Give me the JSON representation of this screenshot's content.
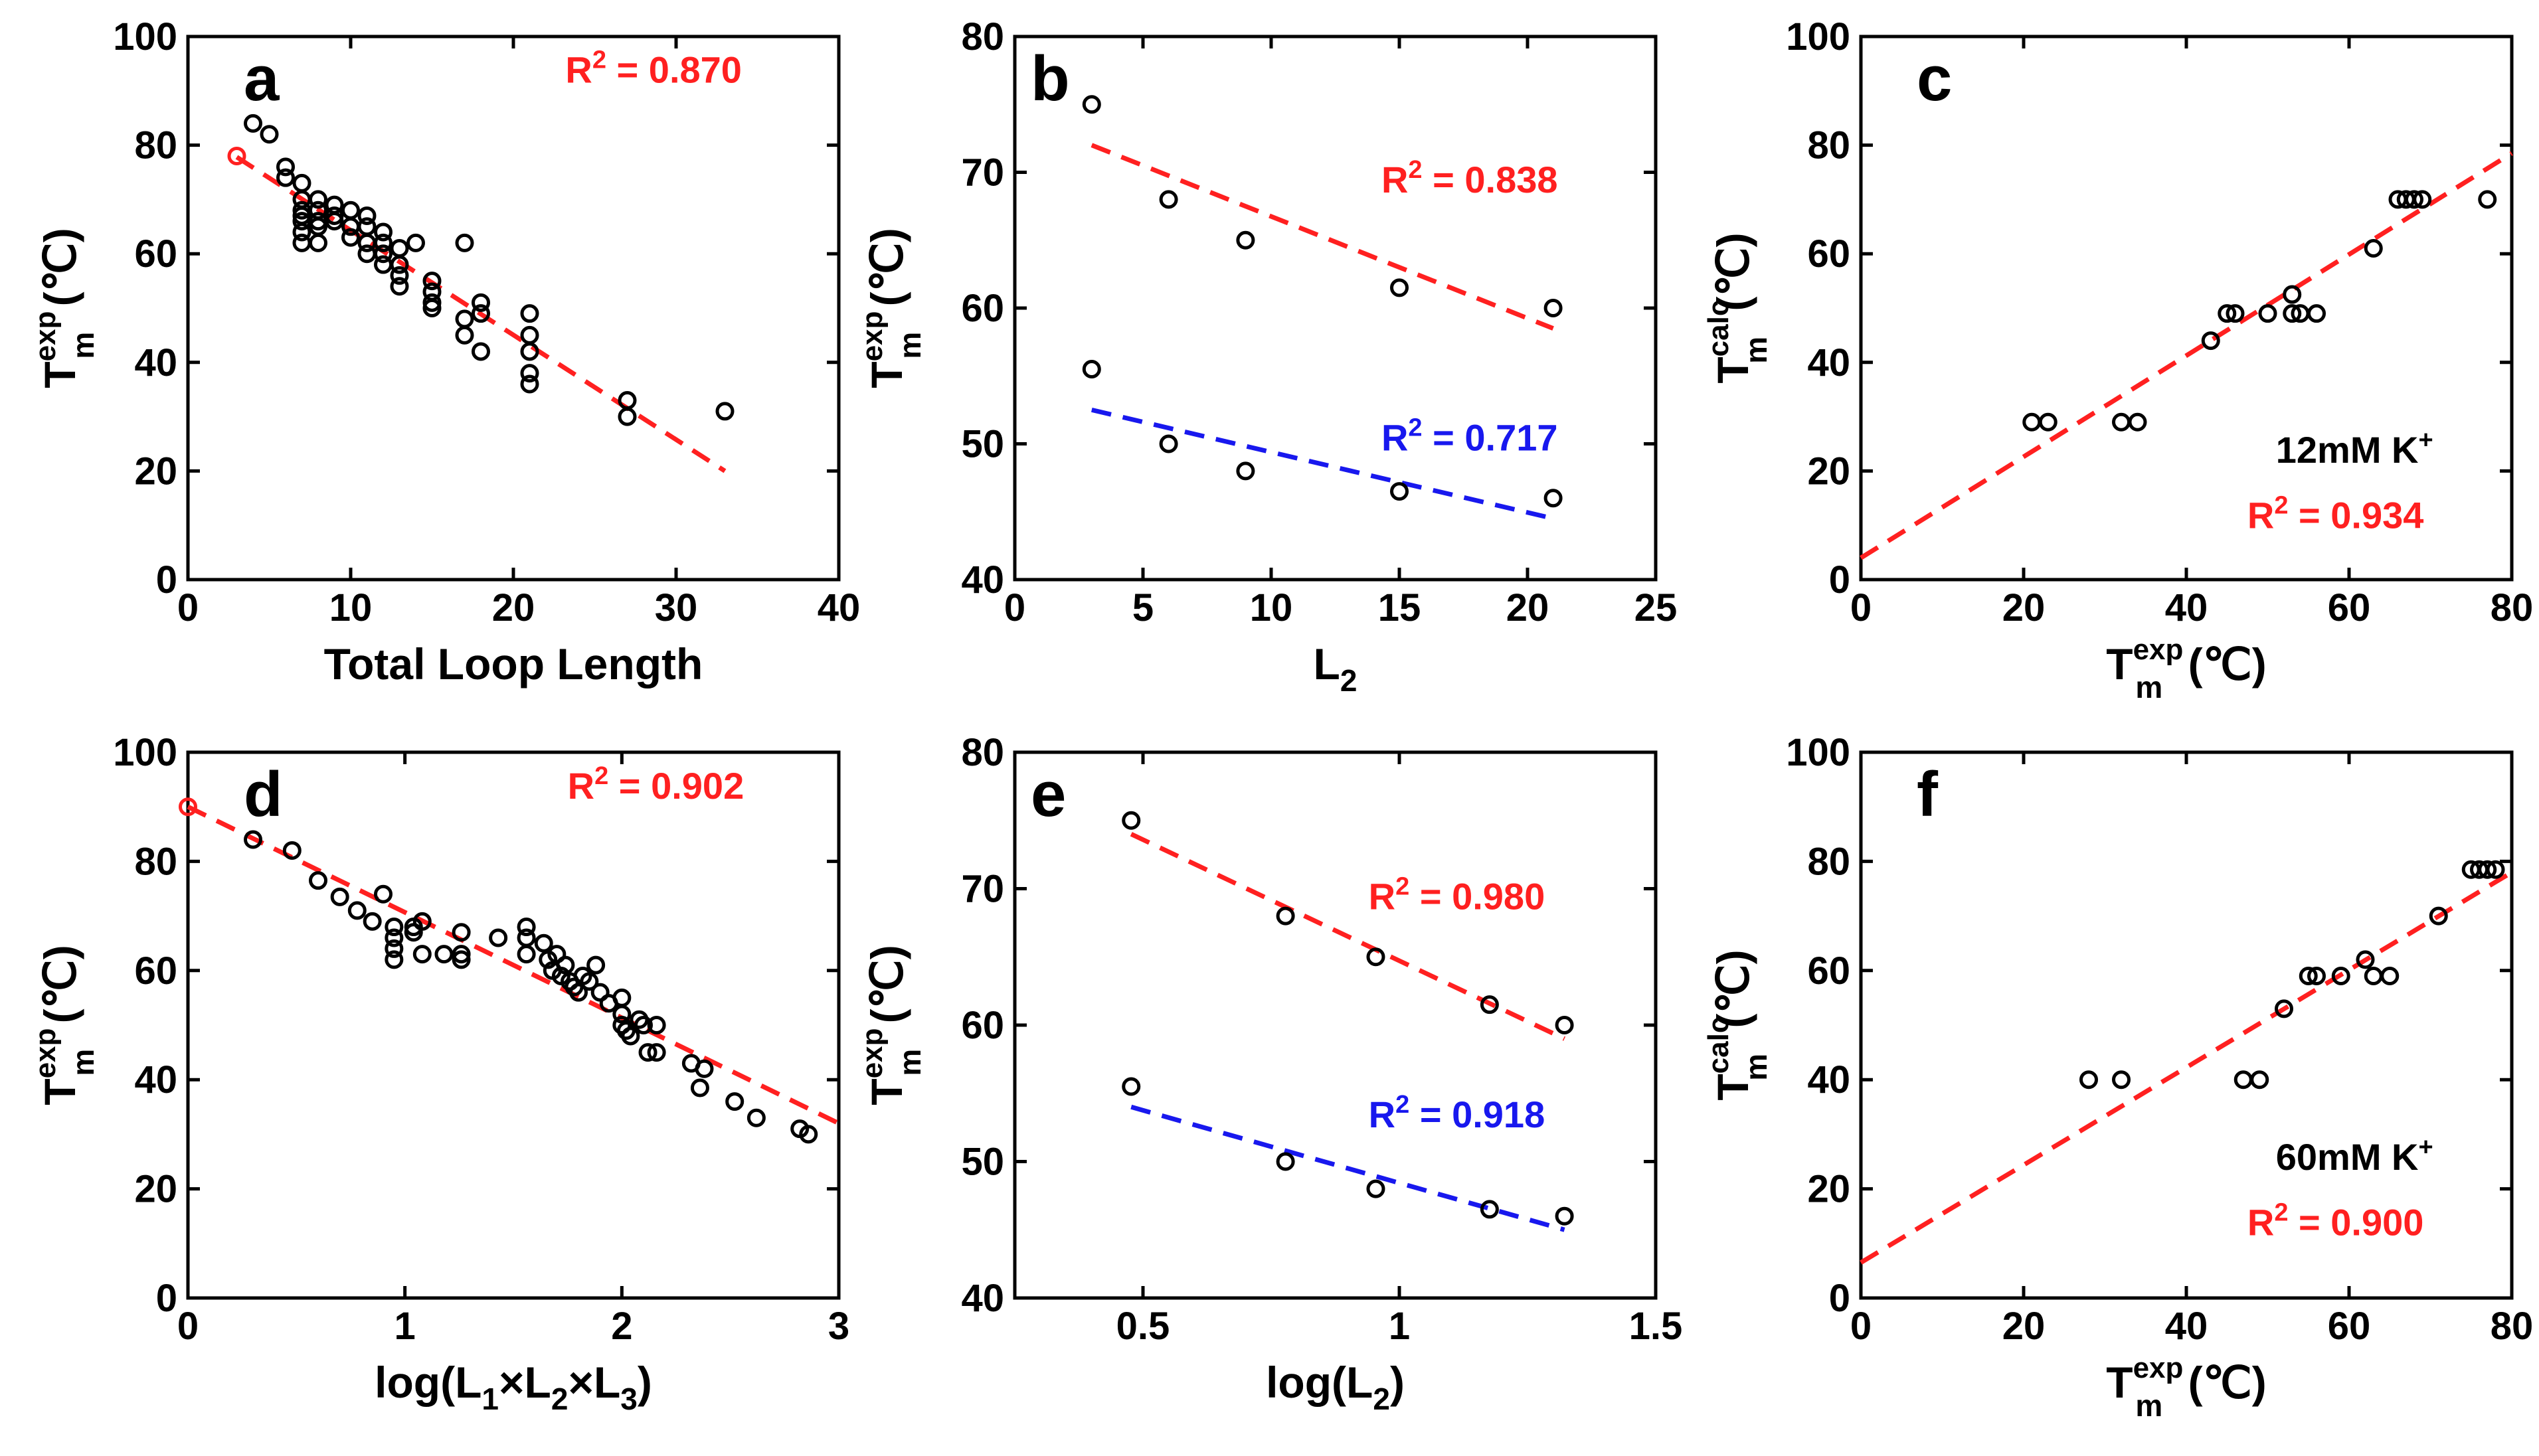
{
  "figure": {
    "colors": {
      "red": "#ff2020",
      "blue": "#1818ee",
      "black": "#000000"
    }
  },
  "chart_data": [
    {
      "panel": "a",
      "type": "scatter",
      "xlabel": "Total Loop Length",
      "ylabel_main": "T",
      "ylabel_sup": "exp",
      "ylabel_sub": "m",
      "ylabel_unit": "(℃)",
      "xlim": [
        0,
        40
      ],
      "ylim": [
        0,
        100
      ],
      "xticks": [
        0,
        10,
        20,
        30,
        40
      ],
      "yticks": [
        0,
        20,
        40,
        60,
        80,
        100
      ],
      "x_tick_labels": [
        "0",
        "10",
        "20",
        "30",
        "40"
      ],
      "y_tick_labels": [
        "0",
        "20",
        "40",
        "60",
        "80",
        "100"
      ],
      "grid": false,
      "annotations": [
        {
          "main": "R",
          "sup": "2",
          "rest": " = 0.870",
          "color": "red",
          "at": [
            23.2,
            91.5
          ]
        }
      ],
      "series": [
        {
          "color": "black",
          "points": [
            [
              4,
              84
            ],
            [
              5,
              82
            ],
            [
              6,
              76
            ],
            [
              6,
              74
            ],
            [
              7,
              73
            ],
            [
              7,
              70
            ],
            [
              7,
              68
            ],
            [
              7,
              67
            ],
            [
              7,
              66
            ],
            [
              7,
              64
            ],
            [
              7,
              62
            ],
            [
              8,
              70
            ],
            [
              8,
              68
            ],
            [
              8,
              66
            ],
            [
              8,
              65
            ],
            [
              8,
              62
            ],
            [
              9,
              69
            ],
            [
              9,
              67
            ],
            [
              9,
              66
            ],
            [
              10,
              68
            ],
            [
              10,
              65
            ],
            [
              10,
              63
            ],
            [
              11,
              67
            ],
            [
              11,
              65
            ],
            [
              11,
              62
            ],
            [
              11,
              60
            ],
            [
              12,
              64
            ],
            [
              12,
              62
            ],
            [
              12,
              60
            ],
            [
              12,
              58
            ],
            [
              13,
              61
            ],
            [
              13,
              58
            ],
            [
              13,
              56
            ],
            [
              13,
              54
            ],
            [
              14,
              62
            ],
            [
              15,
              55
            ],
            [
              15,
              53
            ],
            [
              15,
              51
            ],
            [
              15,
              50
            ],
            [
              17,
              62
            ],
            [
              17,
              48
            ],
            [
              17,
              45
            ],
            [
              18,
              51
            ],
            [
              18,
              49
            ],
            [
              18,
              42
            ],
            [
              21,
              49
            ],
            [
              21,
              45
            ],
            [
              21,
              42
            ],
            [
              21,
              38
            ],
            [
              21,
              36
            ],
            [
              27,
              33
            ],
            [
              27,
              30
            ],
            [
              33,
              31
            ]
          ]
        },
        {
          "color": "red",
          "points": [
            [
              3,
              78
            ]
          ]
        }
      ],
      "fit_lines": [
        {
          "color": "red",
          "x": [
            3,
            33
          ],
          "y": [
            77.8,
            20
          ]
        }
      ]
    },
    {
      "panel": "b",
      "type": "scatter",
      "xlabel_main": "L",
      "xlabel_sub": "2",
      "ylabel_main": "T",
      "ylabel_sup": "exp",
      "ylabel_sub": "m",
      "ylabel_unit": "(℃)",
      "xlim": [
        0,
        25
      ],
      "ylim": [
        40,
        80
      ],
      "xticks": [
        0,
        5,
        10,
        15,
        20,
        25
      ],
      "yticks": [
        40,
        50,
        60,
        70,
        80
      ],
      "x_tick_labels": [
        "0",
        "5",
        "10",
        "15",
        "20",
        "25"
      ],
      "y_tick_labels": [
        "40",
        "50",
        "60",
        "70",
        "80"
      ],
      "grid": false,
      "annotations": [
        {
          "main": "R",
          "sup": "2",
          "rest": " = 0.838",
          "color": "red",
          "at": [
            14.3,
            68.5
          ]
        },
        {
          "main": "R",
          "sup": "2",
          "rest": " = 0.717",
          "color": "blue",
          "at": [
            14.3,
            49.5
          ]
        }
      ],
      "series": [
        {
          "color": "black",
          "points": [
            [
              3,
              75
            ],
            [
              6,
              68
            ],
            [
              9,
              65
            ],
            [
              15,
              61.5
            ],
            [
              21,
              60
            ]
          ]
        },
        {
          "color": "black",
          "points": [
            [
              3,
              55.5
            ],
            [
              6,
              50
            ],
            [
              9,
              48
            ],
            [
              15,
              46.5
            ],
            [
              21,
              46
            ]
          ]
        }
      ],
      "fit_lines": [
        {
          "color": "red",
          "x": [
            3,
            21
          ],
          "y": [
            72,
            58.5
          ]
        },
        {
          "color": "blue",
          "x": [
            3,
            21
          ],
          "y": [
            52.5,
            44.5
          ]
        }
      ]
    },
    {
      "panel": "c",
      "type": "scatter",
      "xlabel_main": "T",
      "xlabel_sup": "exp",
      "xlabel_sub": "m",
      "xlabel_unit": "(℃)",
      "ylabel_main": "T",
      "ylabel_sup": "calc",
      "ylabel_sub": "m",
      "ylabel_unit": "(℃)",
      "xlim": [
        0,
        80
      ],
      "ylim": [
        0,
        100
      ],
      "xticks": [
        0,
        20,
        40,
        60,
        80
      ],
      "yticks": [
        0,
        20,
        40,
        60,
        80,
        100
      ],
      "x_tick_labels": [
        "0",
        "20",
        "40",
        "60",
        "80"
      ],
      "y_tick_labels": [
        "0",
        "20",
        "40",
        "60",
        "80",
        "100"
      ],
      "grid": false,
      "annotations": [
        {
          "main": "12mM K",
          "sup": "+",
          "rest": "",
          "color": "black",
          "at": [
            51,
            21.5
          ]
        },
        {
          "main": "R",
          "sup": "2",
          "rest": " = 0.934",
          "color": "red",
          "at": [
            47.5,
            9.5
          ]
        }
      ],
      "series": [
        {
          "color": "black",
          "points": [
            [
              21,
              29
            ],
            [
              23,
              29
            ],
            [
              32,
              29
            ],
            [
              34,
              29
            ],
            [
              43,
              44
            ],
            [
              45,
              49
            ],
            [
              46,
              49
            ],
            [
              50,
              49
            ],
            [
              53,
              49
            ],
            [
              53,
              52.5
            ],
            [
              54,
              49
            ],
            [
              56,
              49
            ],
            [
              63,
              61
            ],
            [
              66,
              70
            ],
            [
              67,
              70
            ],
            [
              68,
              70
            ],
            [
              69,
              70
            ],
            [
              77,
              70
            ]
          ]
        }
      ],
      "fit_lines": [
        {
          "color": "red",
          "x": [
            0,
            80
          ],
          "y": [
            4,
            78.5
          ]
        }
      ]
    },
    {
      "panel": "d",
      "type": "scatter",
      "xlabel_main": "log(L",
      "xlabel_parts": [
        [
          "1",
          "×L"
        ],
        [
          "2",
          "×L"
        ],
        [
          "3",
          ")"
        ]
      ],
      "ylabel_main": "T",
      "ylabel_sup": "exp",
      "ylabel_sub": "m",
      "ylabel_unit": "(℃)",
      "xlim": [
        0,
        3
      ],
      "ylim": [
        0,
        100
      ],
      "xticks": [
        0,
        1,
        2,
        3
      ],
      "yticks": [
        0,
        20,
        40,
        60,
        80,
        100
      ],
      "x_tick_labels": [
        "0",
        "1",
        "2",
        "3"
      ],
      "y_tick_labels": [
        "0",
        "20",
        "40",
        "60",
        "80",
        "100"
      ],
      "grid": false,
      "annotations": [
        {
          "main": "R",
          "sup": "2",
          "rest": " = 0.902",
          "color": "red",
          "at": [
            1.75,
            91.5
          ]
        }
      ],
      "series": [
        {
          "color": "black",
          "points": [
            [
              0.3,
              84
            ],
            [
              0.48,
              82
            ],
            [
              0.6,
              76.5
            ],
            [
              0.7,
              73.5
            ],
            [
              0.78,
              71
            ],
            [
              0.85,
              69
            ],
            [
              0.9,
              74
            ],
            [
              0.95,
              68
            ],
            [
              0.95,
              66
            ],
            [
              0.95,
              64
            ],
            [
              0.95,
              62
            ],
            [
              1.04,
              68
            ],
            [
              1.04,
              67
            ],
            [
              1.08,
              69
            ],
            [
              1.08,
              63
            ],
            [
              1.18,
              63
            ],
            [
              1.26,
              67
            ],
            [
              1.26,
              63
            ],
            [
              1.26,
              62
            ],
            [
              1.43,
              66
            ],
            [
              1.56,
              68
            ],
            [
              1.56,
              66
            ],
            [
              1.56,
              63
            ],
            [
              1.64,
              65
            ],
            [
              1.66,
              62
            ],
            [
              1.68,
              60
            ],
            [
              1.7,
              63
            ],
            [
              1.72,
              59
            ],
            [
              1.74,
              61
            ],
            [
              1.76,
              58
            ],
            [
              1.78,
              57
            ],
            [
              1.8,
              56
            ],
            [
              1.82,
              59
            ],
            [
              1.85,
              58
            ],
            [
              1.88,
              61
            ],
            [
              1.9,
              56
            ],
            [
              1.94,
              54
            ],
            [
              2.0,
              55
            ],
            [
              2.0,
              52
            ],
            [
              2.0,
              50
            ],
            [
              2.02,
              49
            ],
            [
              2.04,
              48
            ],
            [
              2.08,
              51
            ],
            [
              2.1,
              50
            ],
            [
              2.12,
              45
            ],
            [
              2.16,
              45
            ],
            [
              2.16,
              50
            ],
            [
              2.32,
              43
            ],
            [
              2.36,
              38.5
            ],
            [
              2.38,
              42
            ],
            [
              2.52,
              36
            ],
            [
              2.62,
              33
            ],
            [
              2.82,
              31
            ],
            [
              2.86,
              30
            ]
          ]
        },
        {
          "color": "red",
          "points": [
            [
              0,
              90
            ]
          ]
        }
      ],
      "fit_lines": [
        {
          "color": "red",
          "x": [
            0,
            3
          ],
          "y": [
            90,
            32
          ]
        }
      ]
    },
    {
      "panel": "e",
      "type": "scatter",
      "xlabel": "log(L",
      "xlabel_sub": "2",
      "xlabel_rest": ")",
      "ylabel_main": "T",
      "ylabel_sup": "exp",
      "ylabel_sub": "m",
      "ylabel_unit": "(℃)",
      "xlim": [
        0.25,
        1.5
      ],
      "ylim": [
        40,
        80
      ],
      "xticks": [
        0.5,
        1,
        1.5
      ],
      "yticks": [
        40,
        50,
        60,
        70,
        80
      ],
      "x_tick_labels": [
        "0.5",
        "1",
        "1.5"
      ],
      "y_tick_labels": [
        "40",
        "50",
        "60",
        "70",
        "80"
      ],
      "grid": false,
      "annotations": [
        {
          "main": "R",
          "sup": "2",
          "rest": " = 0.980",
          "color": "red",
          "at": [
            0.94,
            68.5
          ]
        },
        {
          "main": "R",
          "sup": "2",
          "rest": " = 0.918",
          "color": "blue",
          "at": [
            0.94,
            52.5
          ]
        }
      ],
      "series": [
        {
          "color": "black",
          "points": [
            [
              0.477,
              75
            ],
            [
              0.778,
              68
            ],
            [
              0.954,
              65
            ],
            [
              1.176,
              61.5
            ],
            [
              1.322,
              60
            ]
          ]
        },
        {
          "color": "black",
          "points": [
            [
              0.477,
              55.5
            ],
            [
              0.778,
              50
            ],
            [
              0.954,
              48
            ],
            [
              1.176,
              46.5
            ],
            [
              1.322,
              46
            ]
          ]
        }
      ],
      "fit_lines": [
        {
          "color": "red",
          "x": [
            0.477,
            1.322
          ],
          "y": [
            74,
            59
          ]
        },
        {
          "color": "blue",
          "x": [
            0.477,
            1.322
          ],
          "y": [
            54,
            45
          ]
        }
      ]
    },
    {
      "panel": "f",
      "type": "scatter",
      "xlabel_main": "T",
      "xlabel_sup": "exp",
      "xlabel_sub": "m",
      "xlabel_unit": "(℃)",
      "ylabel_main": "T",
      "ylabel_sup": "calc",
      "ylabel_sub": "m",
      "ylabel_unit": "(℃)",
      "xlim": [
        0,
        80
      ],
      "ylim": [
        0,
        100
      ],
      "xticks": [
        0,
        20,
        40,
        60,
        80
      ],
      "yticks": [
        0,
        20,
        40,
        60,
        80,
        100
      ],
      "x_tick_labels": [
        "0",
        "20",
        "40",
        "60",
        "80"
      ],
      "y_tick_labels": [
        "0",
        "20",
        "40",
        "60",
        "80",
        "100"
      ],
      "grid": false,
      "annotations": [
        {
          "main": "60mM K",
          "sup": "+",
          "rest": "",
          "color": "black",
          "at": [
            51,
            23.5
          ]
        },
        {
          "main": "R",
          "sup": "2",
          "rest": " = 0.900",
          "color": "red",
          "at": [
            47.5,
            11.5
          ]
        }
      ],
      "series": [
        {
          "color": "black",
          "points": [
            [
              28,
              40
            ],
            [
              32,
              40
            ],
            [
              47,
              40
            ],
            [
              49,
              40
            ],
            [
              52,
              53
            ],
            [
              55,
              59
            ],
            [
              56,
              59
            ],
            [
              59,
              59
            ],
            [
              62,
              62
            ],
            [
              63,
              59
            ],
            [
              65,
              59
            ],
            [
              71,
              70
            ],
            [
              75,
              78.5
            ],
            [
              76,
              78.5
            ],
            [
              77,
              78.5
            ],
            [
              78,
              78.5
            ]
          ]
        }
      ],
      "fit_lines": [
        {
          "color": "red",
          "x": [
            0,
            80
          ],
          "y": [
            6.5,
            78
          ]
        }
      ]
    }
  ]
}
